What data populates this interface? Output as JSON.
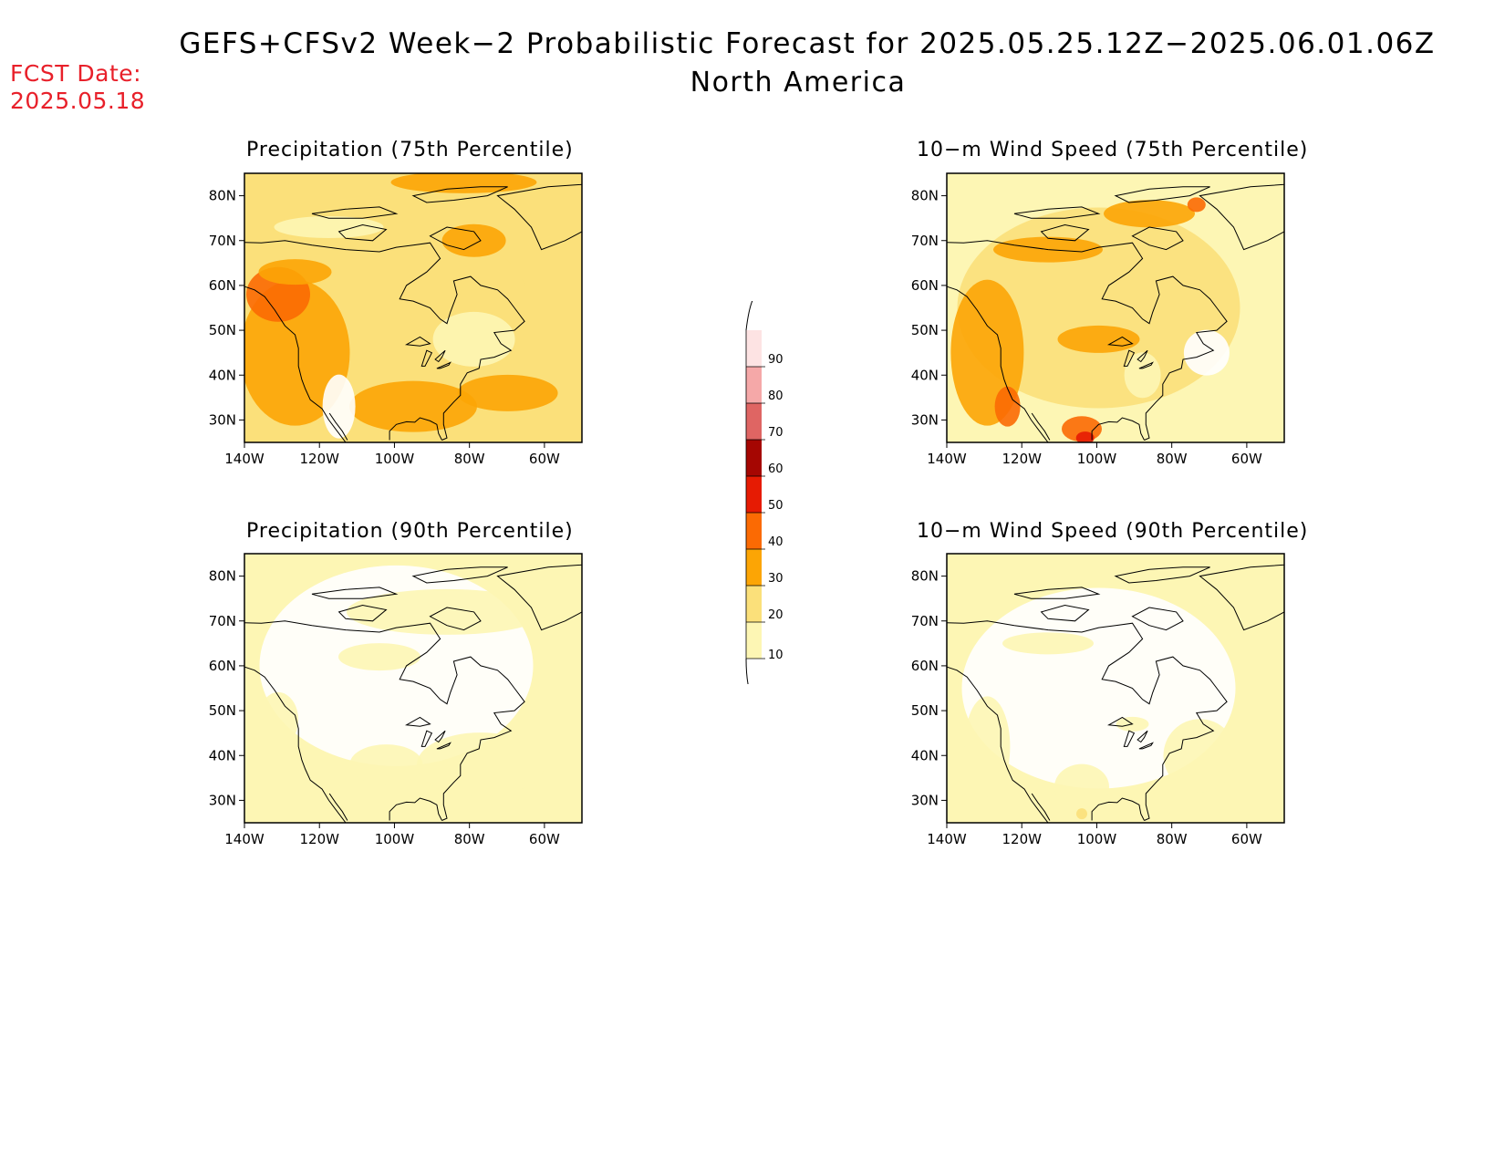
{
  "header": {
    "title": "GEFS+CFSv2 Week−2 Probabilistic Forecast for 2025.05.25.12Z−2025.06.01.06Z",
    "subtitle": "North America",
    "fcst_date_label": "FCST Date:",
    "fcst_date_value": "2025.05.18"
  },
  "panels": [
    {
      "id": "precip-75",
      "title": "Precipitation (75th Percentile)"
    },
    {
      "id": "wind-75",
      "title": "10−m Wind Speed (75th Percentile)"
    },
    {
      "id": "precip-90",
      "title": "Precipitation (90th Percentile)"
    },
    {
      "id": "wind-90",
      "title": "10−m Wind Speed (90th Percentile)"
    }
  ],
  "axes": {
    "lon_ticks": [
      "140W",
      "120W",
      "100W",
      "80W",
      "60W"
    ],
    "lat_ticks": [
      "80N",
      "70N",
      "60N",
      "50N",
      "40N",
      "30N"
    ]
  },
  "colorbar": {
    "levels": [
      "10",
      "20",
      "30",
      "40",
      "50",
      "60",
      "70",
      "80",
      "90"
    ],
    "colors": [
      "#fdf6b4",
      "#fbe07a",
      "#fca505",
      "#fb6a03",
      "#e61b03",
      "#a50602",
      "#df6563",
      "#f5a8a8",
      "#fde3e3"
    ]
  }
}
